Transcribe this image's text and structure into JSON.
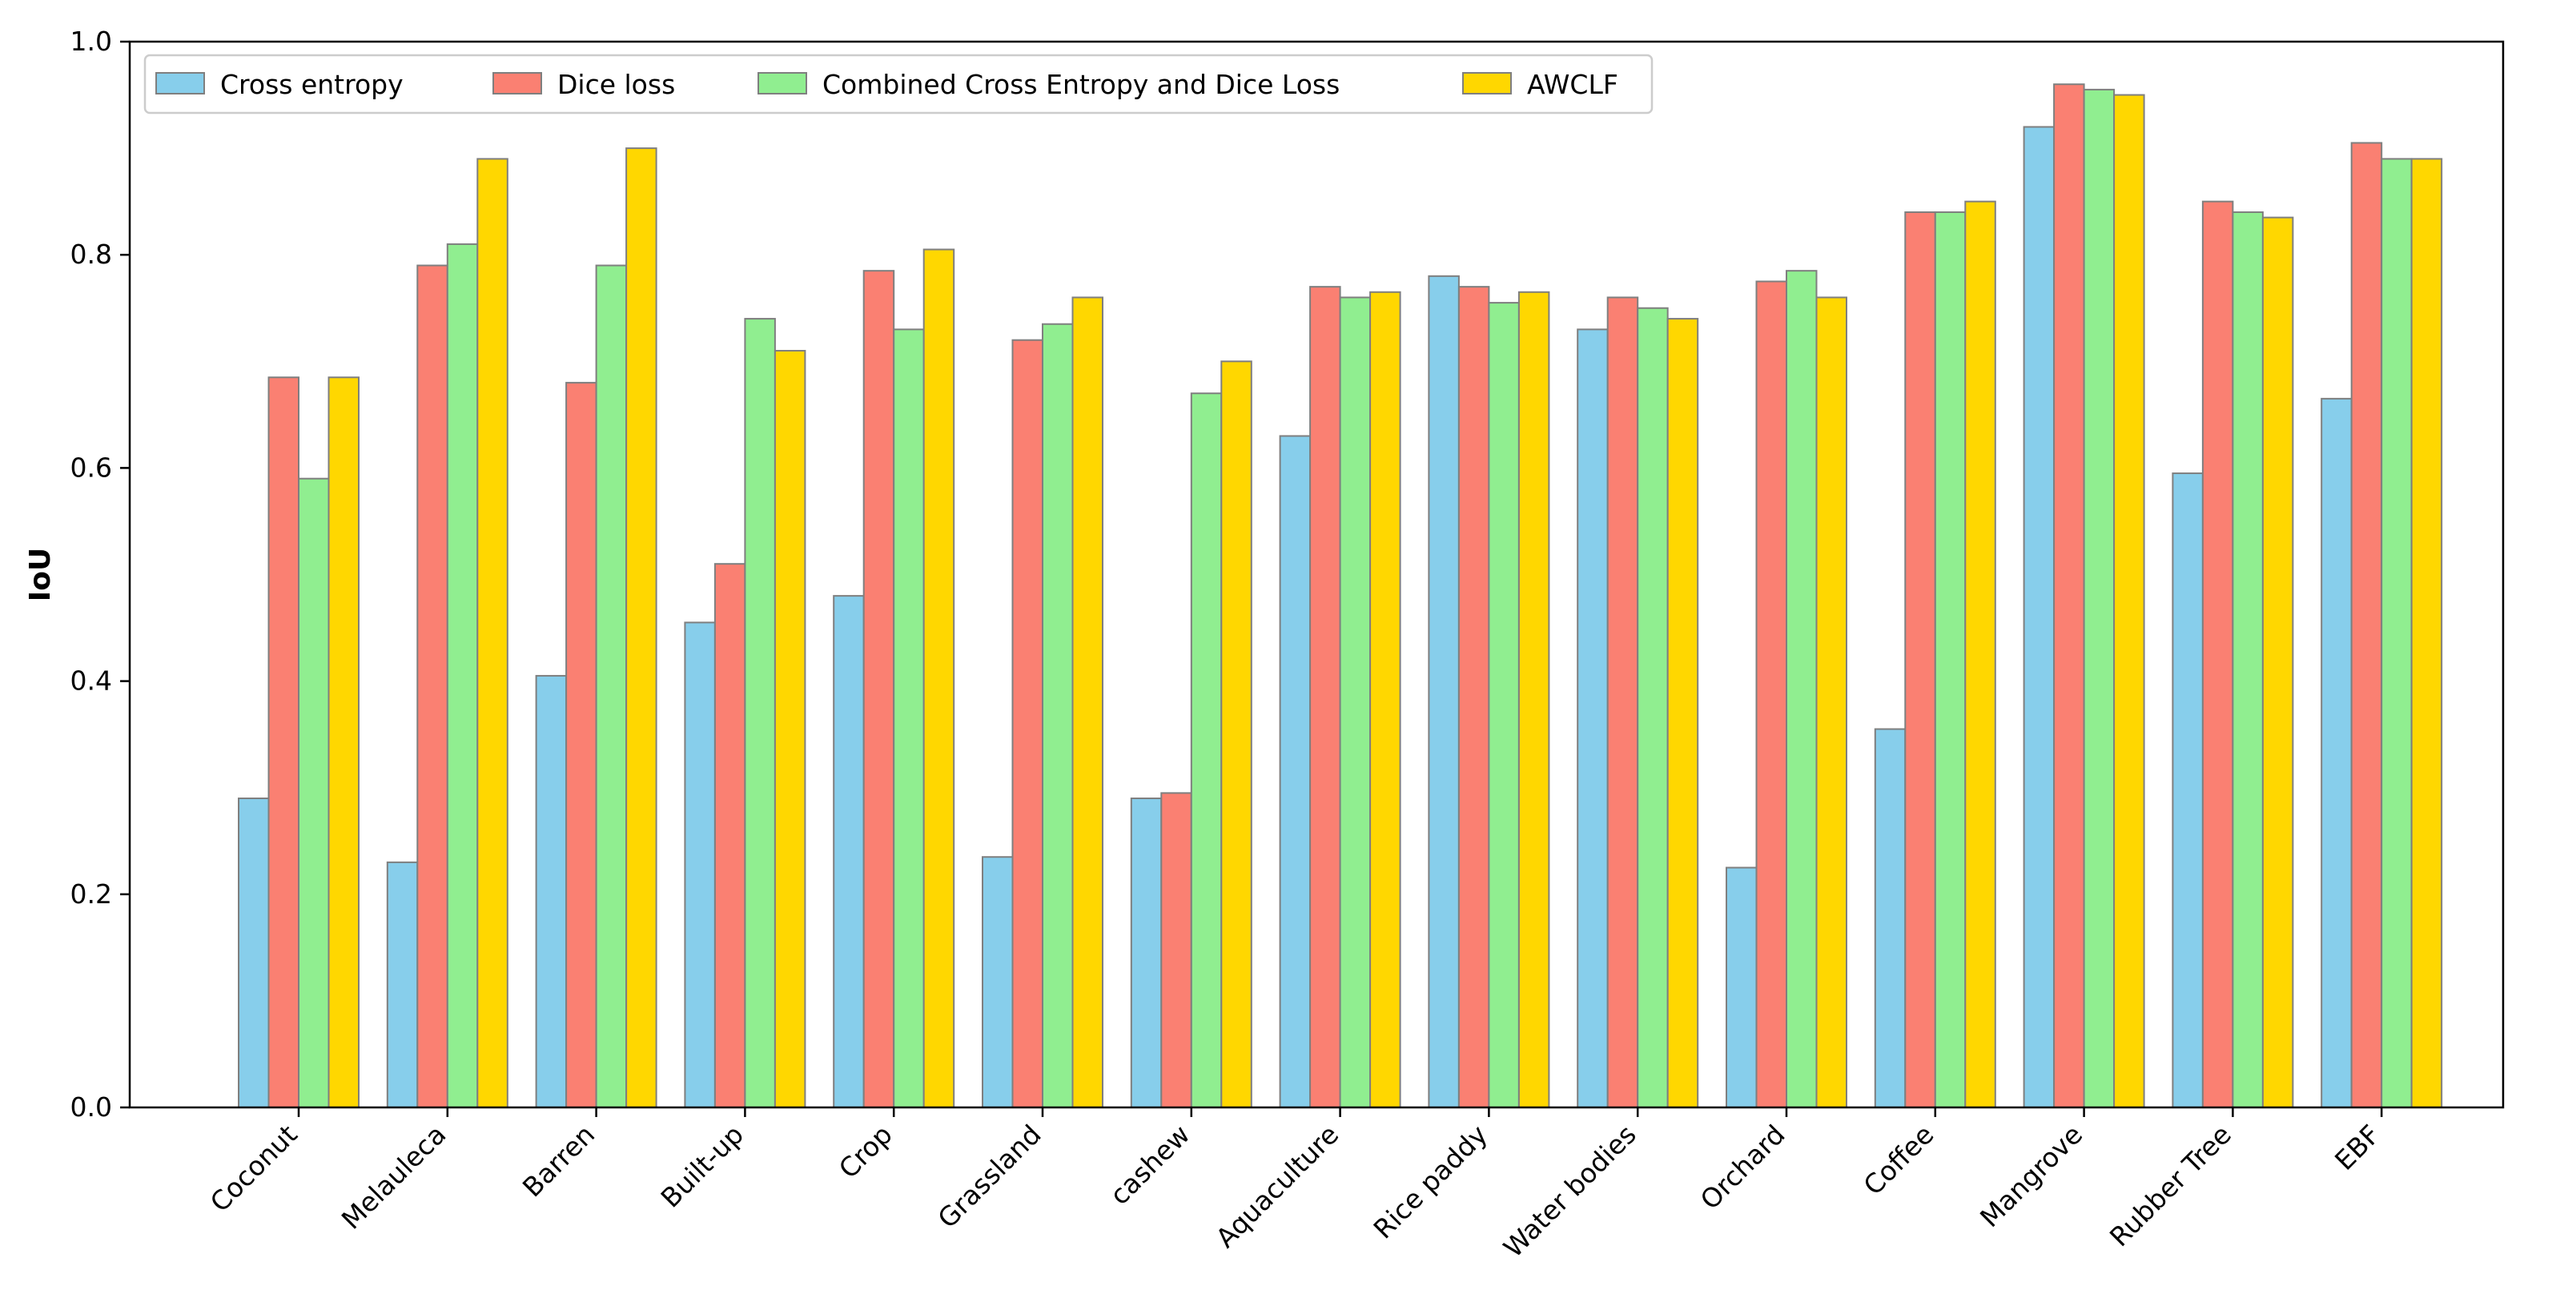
{
  "chart_data": {
    "type": "bar",
    "title": "",
    "xlabel": "",
    "ylabel": "IoU",
    "ylim": [
      0,
      1.0
    ],
    "yticks": [
      "0.0",
      "0.2",
      "0.4",
      "0.6",
      "0.8",
      "1.0"
    ],
    "grid": false,
    "legend_position": "top-left",
    "categories": [
      "Coconut",
      "Melauleca",
      "Barren",
      "Built-up",
      "Crop",
      "Grassland",
      "cashew",
      "Aquaculture",
      "Rice paddy",
      "Water bodies",
      "Orchard",
      "Coffee",
      "Mangrove",
      "Rubber Tree",
      "EBF"
    ],
    "series": [
      {
        "name": "Cross entropy",
        "color": "#87ceeb",
        "values": [
          0.29,
          0.23,
          0.405,
          0.455,
          0.48,
          0.235,
          0.29,
          0.63,
          0.78,
          0.73,
          0.225,
          0.355,
          0.92,
          0.595,
          0.665
        ]
      },
      {
        "name": "Dice loss",
        "color": "#fa8072",
        "values": [
          0.685,
          0.79,
          0.68,
          0.51,
          0.785,
          0.72,
          0.295,
          0.77,
          0.77,
          0.76,
          0.775,
          0.84,
          0.96,
          0.85,
          0.905
        ]
      },
      {
        "name": "Combined Cross Entropy and Dice Loss",
        "color": "#90ee90",
        "values": [
          0.59,
          0.81,
          0.79,
          0.74,
          0.73,
          0.735,
          0.67,
          0.76,
          0.755,
          0.75,
          0.785,
          0.84,
          0.955,
          0.84,
          0.89
        ]
      },
      {
        "name": "AWCLF",
        "color": "#ffd700",
        "values": [
          0.685,
          0.89,
          0.9,
          0.71,
          0.805,
          0.76,
          0.7,
          0.765,
          0.765,
          0.74,
          0.76,
          0.85,
          0.95,
          0.835,
          0.89
        ]
      }
    ]
  }
}
